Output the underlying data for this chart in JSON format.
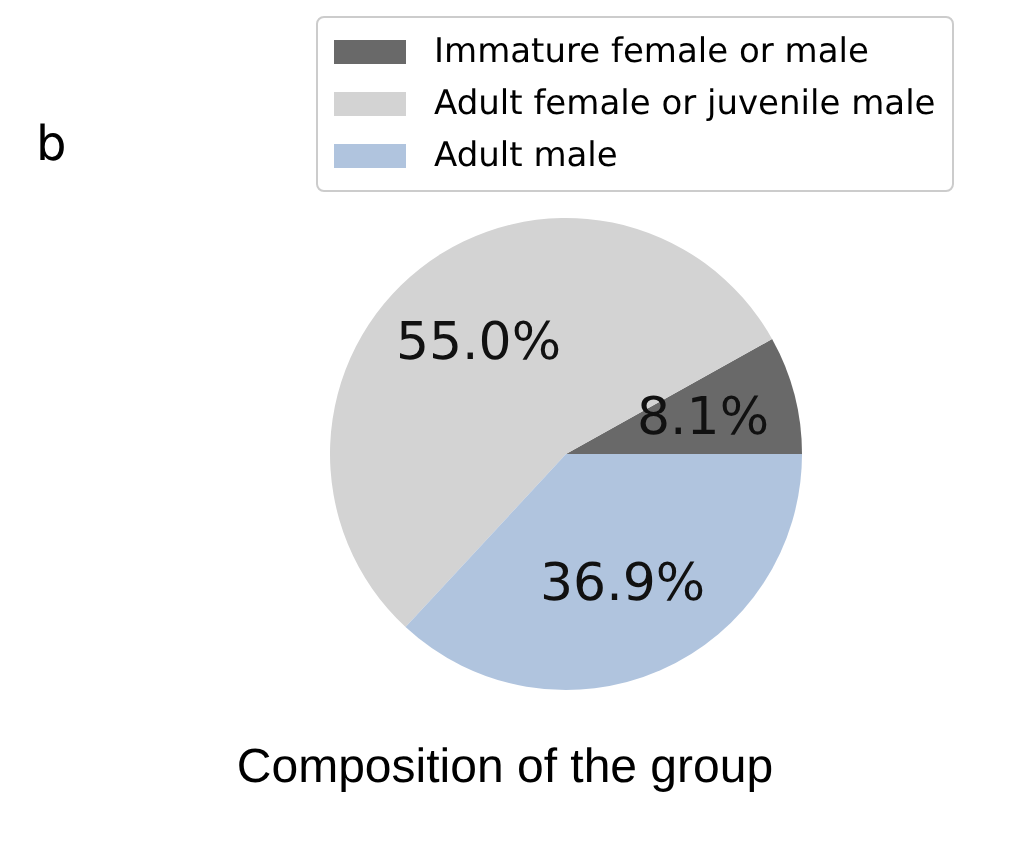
{
  "chart_data": {
    "type": "pie",
    "title": "Composition of the group",
    "categories": [
      "Immature female or male",
      "Adult female or juvenile male",
      "Adult male"
    ],
    "values": [
      8.1,
      55.0,
      36.9
    ],
    "colors": [
      "#696969",
      "#d3d3d3",
      "#b0c4de"
    ],
    "value_labels": [
      "8.1%",
      "55.0%",
      "36.9%"
    ],
    "legend": "top",
    "annotations": [
      "b"
    ]
  }
}
